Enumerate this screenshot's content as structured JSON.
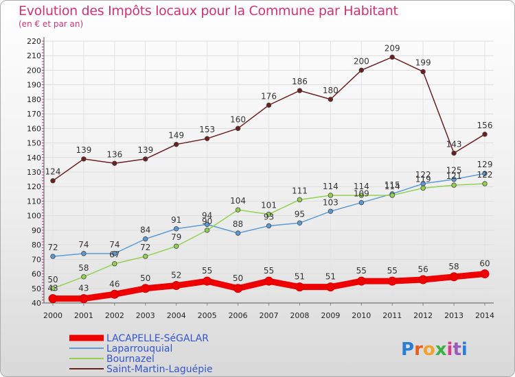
{
  "header": {
    "title": "Evolution des Impôts locaux pour la Commune par Habitant",
    "subtitle": "(en € et par an)"
  },
  "logo": {
    "text": "Proxiti"
  },
  "chart_data": {
    "type": "line",
    "title": "Evolution des Impôts locaux pour la Commune par Habitant",
    "subtitle": "(en € et par an)",
    "xlabel": "",
    "ylabel": "",
    "x": [
      "2000",
      "2001",
      "2002",
      "2003",
      "2004",
      "2005",
      "2006",
      "2007",
      "2008",
      "2009",
      "2010",
      "2011",
      "2012",
      "2013",
      "2014"
    ],
    "ylim": [
      40,
      220
    ],
    "yticks": [
      40,
      50,
      60,
      70,
      80,
      90,
      100,
      110,
      120,
      130,
      140,
      150,
      160,
      170,
      180,
      190,
      200,
      210,
      220
    ],
    "grid": true,
    "legend_position": "bottom-left",
    "series": [
      {
        "name": "LACAPELLE-SéGALAR",
        "color": "#ee0000",
        "emphasis": true,
        "values": [
          43,
          43,
          46,
          50,
          52,
          55,
          50,
          55,
          51,
          51,
          55,
          55,
          56,
          58,
          60
        ]
      },
      {
        "name": "Laparrouquial",
        "color": "#5b9bd5",
        "emphasis": false,
        "values": [
          72,
          74,
          74,
          84,
          91,
          94,
          88,
          93,
          95,
          103,
          109,
          115,
          122,
          125,
          129
        ]
      },
      {
        "name": "Bournazel",
        "color": "#92d050",
        "emphasis": false,
        "values": [
          50,
          58,
          67,
          72,
          79,
          90,
          104,
          101,
          111,
          114,
          114,
          114,
          119,
          121,
          122
        ]
      },
      {
        "name": "Saint-Martin-Laguépie",
        "color": "#6b2020",
        "emphasis": false,
        "values": [
          124,
          139,
          136,
          139,
          149,
          153,
          160,
          176,
          186,
          180,
          200,
          209,
          199,
          143,
          156
        ]
      }
    ]
  }
}
